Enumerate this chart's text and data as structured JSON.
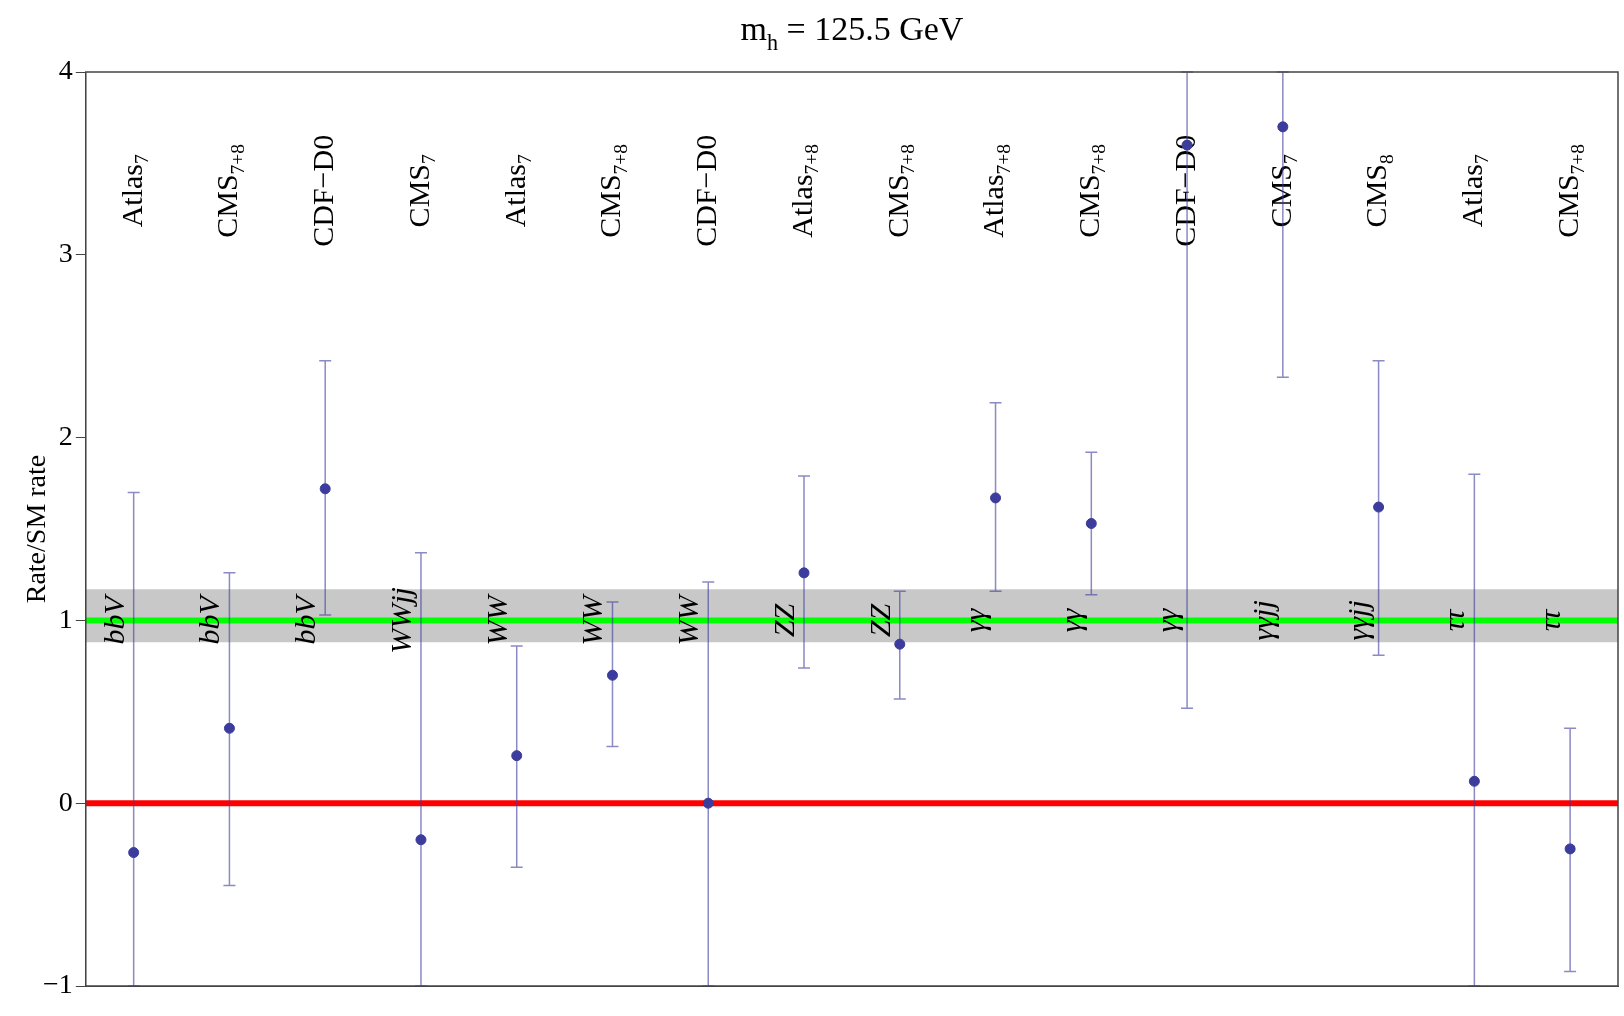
{
  "chart_data": {
    "type": "scatter",
    "title": "m$_{h}$ = 125.5 GeV",
    "ylabel": "Rate/SM rate",
    "categories": [
      "Atlas$_{7}$",
      "CMS$_{7+8}$",
      "CDF−D0",
      "CMS$_{7}$",
      "Atlas$_{7}$",
      "CMS$_{7+8}$",
      "CDF−D0",
      "Atlas$_{7+8}$",
      "CMS$_{7+8}$",
      "Atlas$_{7+8}$",
      "CMS$_{7+8}$",
      "CDF−D0",
      "CMS$_{7}$",
      "CMS$_{8}$",
      "Atlas$_{7}$",
      "CMS$_{7+8}$"
    ],
    "series": [
      {
        "color": "#3c3c9c",
        "values": [
          -0.27,
          0.41,
          1.72,
          -0.2,
          0.26,
          0.7,
          0.0,
          1.26,
          0.87,
          1.67,
          1.53,
          3.6,
          3.7,
          1.62,
          0.12,
          -0.25
        ],
        "errors": [
          [
            -1,
            1.7
          ],
          [
            -0.45,
            1.26
          ],
          [
            1.03,
            2.42
          ],
          [
            -1,
            1.37
          ],
          [
            -0.35,
            0.86
          ],
          [
            0.31,
            1.1
          ],
          [
            -1,
            1.21
          ],
          [
            0.74,
            1.79
          ],
          [
            0.57,
            1.16
          ],
          [
            1.16,
            2.19
          ],
          [
            1.14,
            1.92
          ],
          [
            0.52,
            4
          ],
          [
            2.33,
            4
          ],
          [
            0.81,
            2.42
          ],
          [
            -1,
            1.8
          ],
          [
            -0.92,
            0.41
          ]
        ]
      }
    ],
    "ylim": [
      -1,
      4
    ],
    "yticks": [
      {
        "value": -1,
        "label": "−1"
      },
      0,
      1,
      2,
      3,
      4
    ],
    "grid": false,
    "legend": false,
    "marker": "circle",
    "ref_lines": [
      {
        "axis": "y",
        "value": 0,
        "color": "#ff0000"
      },
      {
        "axis": "y",
        "value": 1,
        "color": "#00ff00"
      }
    ],
    "bands": [
      {
        "axis": "y",
        "from": 0.88,
        "to": 1.17,
        "color": "#c8c8c8"
      }
    ],
    "annotations": [
      "bbV",
      "bbV",
      "bbV",
      "WWjj",
      "WW",
      "WW",
      "WW",
      "ZZ",
      "ZZ",
      "γγ",
      "γγ",
      "γγ",
      "γγjj",
      "γγjj",
      "ττ",
      "ττ"
    ]
  }
}
